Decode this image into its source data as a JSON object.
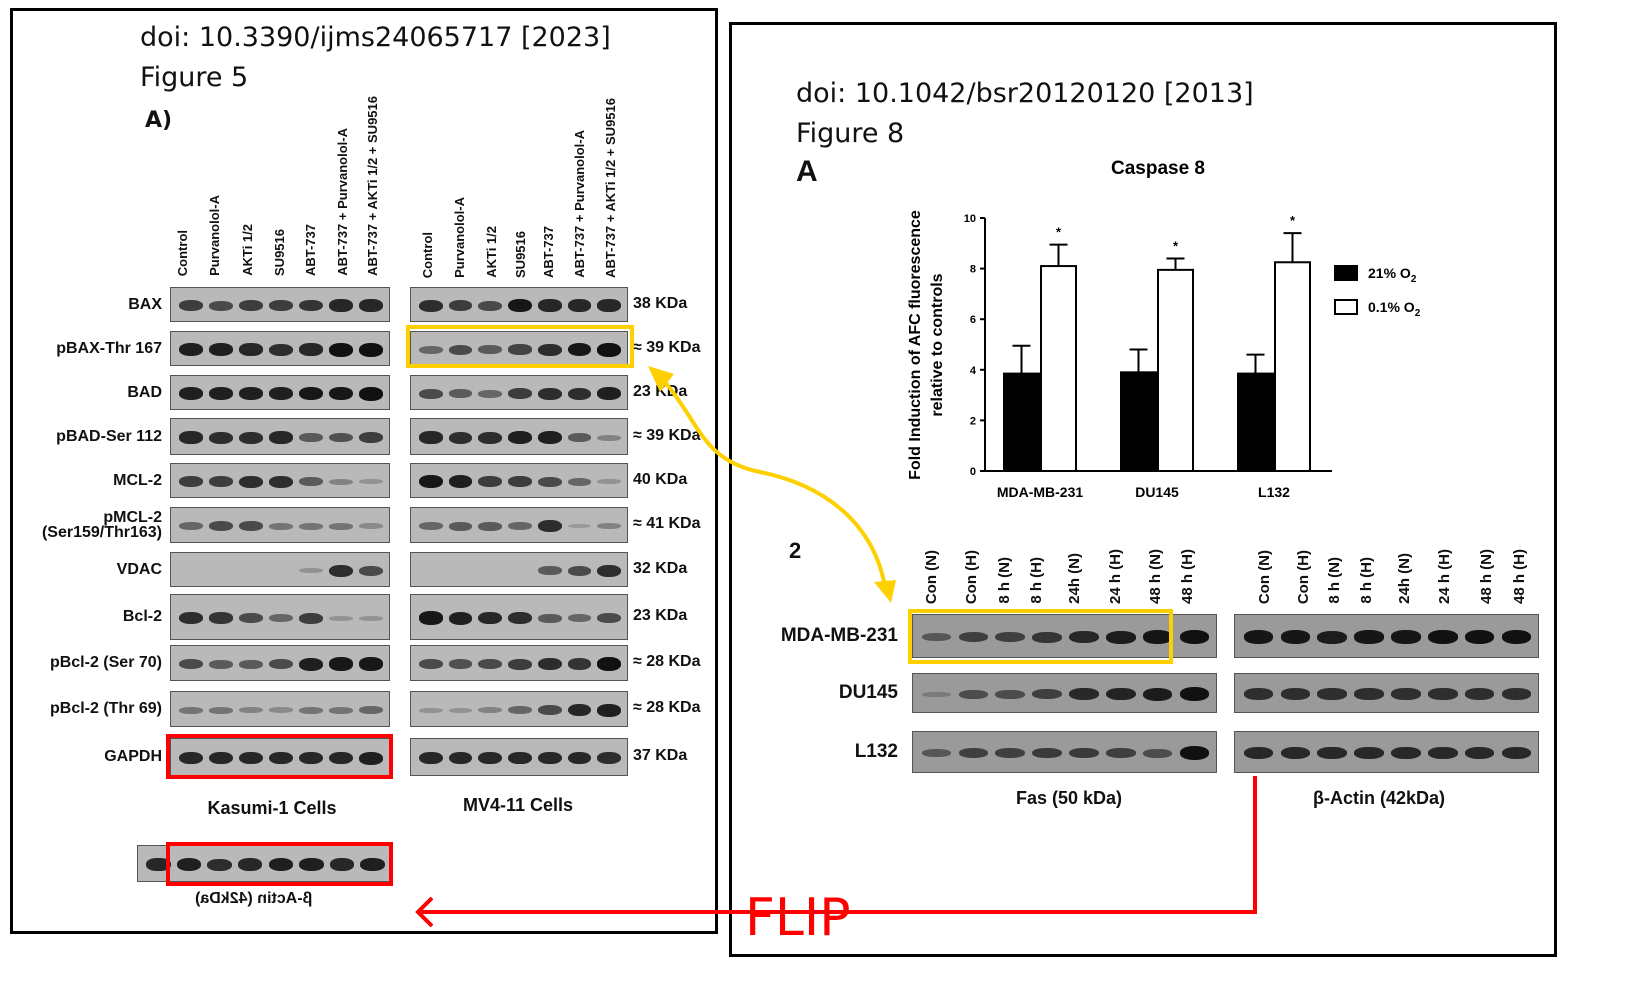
{
  "left_panel": {
    "doi": "doi: 10.3390/ijms24065717 [2023]",
    "figure": "Figure 5",
    "panel": "A)",
    "lanes": [
      "Control",
      "Purvanolol-A",
      "AKTi 1/2",
      "SU9516",
      "ABT-737",
      "ABT-737 + Purvanolol-A",
      "ABT-737 + AKTi 1/2 + SU9516"
    ],
    "rows": [
      {
        "label": "BAX",
        "kda": "38 KDa",
        "kasumi": [
          0.7,
          0.6,
          0.7,
          0.7,
          0.75,
          0.85,
          0.85
        ],
        "mv4": [
          0.8,
          0.7,
          0.6,
          0.95,
          0.85,
          0.85,
          0.85
        ]
      },
      {
        "label": "pBAX-Thr 167",
        "kda": "≈ 39 KDa",
        "kasumi": [
          0.9,
          0.9,
          0.85,
          0.8,
          0.85,
          1,
          1
        ],
        "mv4": [
          0.4,
          0.6,
          0.5,
          0.65,
          0.8,
          0.95,
          1
        ]
      },
      {
        "label": "BAD",
        "kda": "23 KDa",
        "kasumi": [
          0.9,
          0.9,
          0.9,
          0.9,
          0.95,
          0.95,
          1
        ],
        "mv4": [
          0.6,
          0.5,
          0.4,
          0.7,
          0.8,
          0.8,
          0.9
        ]
      },
      {
        "label": "pBAD-Ser 112",
        "kda": "≈ 39 KDa",
        "kasumi": [
          0.85,
          0.8,
          0.8,
          0.85,
          0.5,
          0.55,
          0.7
        ],
        "mv4": [
          0.85,
          0.8,
          0.8,
          0.9,
          0.9,
          0.5,
          0.2
        ]
      },
      {
        "label": "MCL-2",
        "kda": "40 KDa",
        "kasumi": [
          0.7,
          0.7,
          0.8,
          0.8,
          0.5,
          0.2,
          0.1
        ],
        "mv4": [
          0.95,
          0.9,
          0.7,
          0.7,
          0.6,
          0.4,
          0.1
        ]
      },
      {
        "label": "pMCL-2",
        "label2": "(Ser159/Thr163)",
        "kda": "≈ 41 KDa",
        "kasumi": [
          0.4,
          0.6,
          0.6,
          0.3,
          0.3,
          0.3,
          0.15
        ],
        "mv4": [
          0.4,
          0.5,
          0.5,
          0.4,
          0.8,
          0.05,
          0.2
        ]
      },
      {
        "label": "VDAC",
        "kda": "32 KDa",
        "kasumi": [
          0,
          0,
          0,
          0,
          0.1,
          0.8,
          0.6
        ],
        "mv4": [
          0,
          0,
          0,
          0,
          0.5,
          0.6,
          0.8
        ]
      },
      {
        "label": "Bcl-2",
        "kda": "23 KDa",
        "kasumi": [
          0.8,
          0.75,
          0.6,
          0.4,
          0.7,
          0.1,
          0.1
        ],
        "mv4": [
          0.95,
          0.9,
          0.85,
          0.8,
          0.5,
          0.4,
          0.6
        ]
      },
      {
        "label": "pBcl-2 (Ser 70)",
        "kda": "≈ 28 KDa",
        "kasumi": [
          0.6,
          0.5,
          0.5,
          0.6,
          0.9,
          0.95,
          0.95
        ],
        "mv4": [
          0.6,
          0.55,
          0.6,
          0.7,
          0.8,
          0.75,
          1
        ]
      },
      {
        "label": "pBcl-2 (Thr 69)",
        "kda": "≈ 28 KDa",
        "kasumi": [
          0.3,
          0.3,
          0.2,
          0.15,
          0.3,
          0.3,
          0.4
        ],
        "mv4": [
          0.1,
          0.1,
          0.2,
          0.4,
          0.6,
          0.85,
          0.9
        ]
      },
      {
        "label": "GAPDH",
        "kda": "37 KDa",
        "kasumi": [
          0.85,
          0.85,
          0.85,
          0.85,
          0.85,
          0.85,
          0.9
        ],
        "mv4": [
          0.85,
          0.85,
          0.85,
          0.85,
          0.85,
          0.85,
          0.8
        ]
      }
    ],
    "kasumi_label": "Kasumi-1 Cells",
    "mv4_label": "MV4-11 Cells",
    "actin_label_mirrored": "β-Actin (42kDa)",
    "actin_bands": [
      0.85,
      0.9,
      0.8,
      0.85,
      0.9,
      0.9,
      0.85,
      0.9
    ]
  },
  "right_panel": {
    "doi": "doi: 10.1042/bsr20120120 [2013]",
    "figure": "Figure 8",
    "panel": "A",
    "sub_panel": "2",
    "lanes": [
      "Con (N)",
      "Con (H)",
      "8 h (N)",
      "8 h (H)",
      "24h (N)",
      "24 h (H)",
      "48 h (N)",
      "48 h (H)"
    ],
    "rows": [
      {
        "label": "MDA-MB-231",
        "fas": [
          0.4,
          0.6,
          0.6,
          0.7,
          0.8,
          0.9,
          0.95,
          1
        ],
        "actin": [
          0.95,
          0.95,
          0.9,
          0.95,
          0.95,
          1,
          1,
          1
        ]
      },
      {
        "label": "DU145",
        "fas": [
          0.1,
          0.5,
          0.5,
          0.6,
          0.8,
          0.85,
          0.9,
          1
        ],
        "actin": [
          0.75,
          0.75,
          0.75,
          0.75,
          0.75,
          0.75,
          0.75,
          0.75
        ]
      },
      {
        "label": "L132",
        "fas": [
          0.4,
          0.6,
          0.6,
          0.65,
          0.65,
          0.6,
          0.5,
          1
        ],
        "actin": [
          0.8,
          0.8,
          0.8,
          0.8,
          0.8,
          0.8,
          0.8,
          0.8
        ]
      }
    ],
    "fas_label": "Fas (50 kDa)",
    "actin_label": "β-Actin (42kDa)"
  },
  "annotation": {
    "flip_label": "FLIP",
    "red": "#ff0000",
    "yellow": "#ffd000"
  },
  "chart_data": {
    "type": "bar",
    "title": "Caspase 8",
    "ylabel": "Fold Induction of AFC fluorescence relative to controls",
    "ylabel_lines": [
      "Fold Induction of AFC fluorescence",
      "relative to controls"
    ],
    "xlabel": "",
    "categories": [
      "MDA-MB-231",
      "DU145",
      "L132"
    ],
    "ylim": [
      0,
      10
    ],
    "yticks": [
      "0",
      "2",
      "4",
      "6",
      "8",
      "10"
    ],
    "series": [
      {
        "name": "21% O2",
        "label": "21% O",
        "sub": "2",
        "color": "#000000",
        "values": [
          3.85,
          3.9,
          3.85
        ],
        "errors": [
          1.1,
          0.9,
          0.75
        ]
      },
      {
        "name": "0.1% O2",
        "label": "0.1% O",
        "sub": "2",
        "color": "#ffffff",
        "values": [
          8.1,
          7.95,
          8.25
        ],
        "errors": [
          0.85,
          0.45,
          1.15
        ]
      }
    ],
    "significance": [
      "*",
      "*",
      "*"
    ],
    "legend": "right"
  }
}
